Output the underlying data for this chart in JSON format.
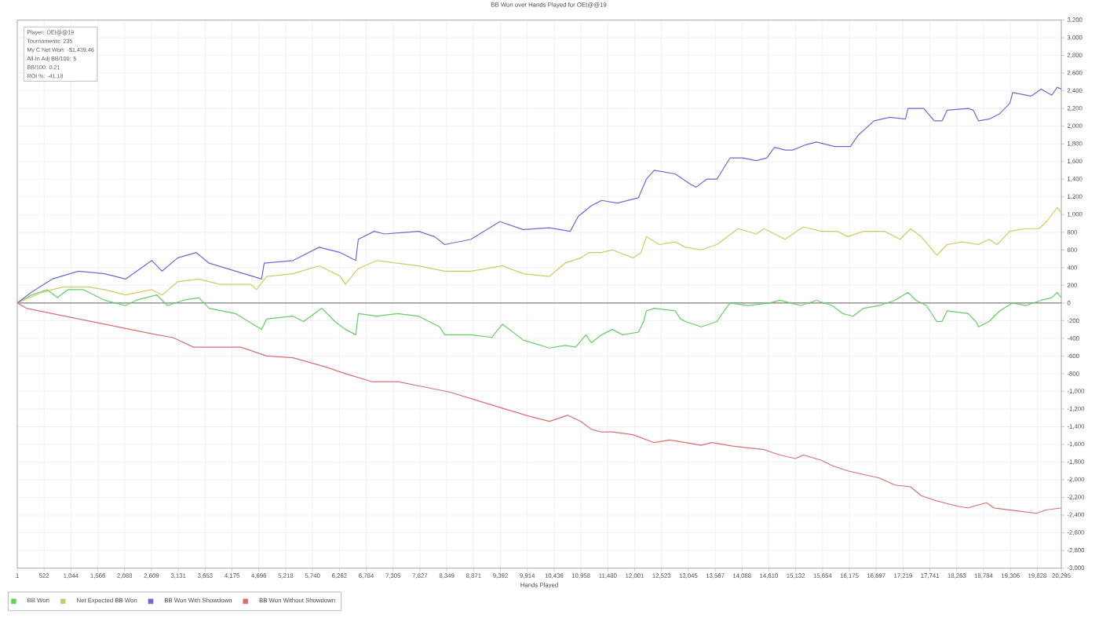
{
  "chart_data": {
    "type": "line",
    "title": "BB Won over Hands Played for OEt@@19",
    "xlabel": "Hands Played",
    "annotations": [
      "Player: OEt@@19",
      "Tournaments: 235",
      "My C Net Won: -$1,439.46",
      "All-In Adj BB/100: 5",
      "BB/100: 0.21",
      "ROI %: -41.18"
    ],
    "xlim": [
      1,
      20295
    ],
    "ylim": [
      -3000,
      3200
    ],
    "xticks": [
      1,
      522,
      {
        "value": 1044,
        "label": "1,044"
      },
      {
        "value": 1566,
        "label": "1,566"
      },
      {
        "value": 2088,
        "label": "2,088"
      },
      {
        "value": 2609,
        "label": "2,609"
      },
      {
        "value": 3131,
        "label": "3,131"
      },
      {
        "value": 3653,
        "label": "3,653"
      },
      {
        "value": 4175,
        "label": "4,175"
      },
      {
        "value": 4696,
        "label": "4,696"
      },
      {
        "value": 5218,
        "label": "5,218"
      },
      {
        "value": 5740,
        "label": "5,740"
      },
      {
        "value": 6262,
        "label": "6,262"
      },
      {
        "value": 6784,
        "label": "6,784"
      },
      {
        "value": 7305,
        "label": "7,305"
      },
      {
        "value": 7827,
        "label": "7,827"
      },
      {
        "value": 8349,
        "label": "8,349"
      },
      {
        "value": 8871,
        "label": "8,871"
      },
      {
        "value": 9392,
        "label": "9,392"
      },
      {
        "value": 9914,
        "label": "9,914"
      },
      {
        "value": 10436,
        "label": "10,436"
      },
      {
        "value": 10958,
        "label": "10,958"
      },
      {
        "value": 11480,
        "label": "11,480"
      },
      {
        "value": 12001,
        "label": "12,001"
      },
      {
        "value": 12523,
        "label": "12,523"
      },
      {
        "value": 13045,
        "label": "13,045"
      },
      {
        "value": 13567,
        "label": "13,567"
      },
      {
        "value": 14088,
        "label": "14,088"
      },
      {
        "value": 14610,
        "label": "14,610"
      },
      {
        "value": 15132,
        "label": "15,132"
      },
      {
        "value": 15654,
        "label": "15,654"
      },
      {
        "value": 16175,
        "label": "16,175"
      },
      {
        "value": 16697,
        "label": "16,697"
      },
      {
        "value": 17219,
        "label": "17,219"
      },
      {
        "value": 17741,
        "label": "17,741"
      },
      {
        "value": 18263,
        "label": "18,263"
      },
      {
        "value": 18784,
        "label": "18,784"
      },
      {
        "value": 19306,
        "label": "19,306"
      },
      {
        "value": 19828,
        "label": "19,828"
      },
      {
        "value": 20295,
        "label": "20,295"
      }
    ],
    "yticks": [
      {
        "value": -3000,
        "label": "-3,000"
      },
      {
        "value": -2800,
        "label": "-2,800"
      },
      {
        "value": -2600,
        "label": "-2,600"
      },
      {
        "value": -2400,
        "label": "-2,400"
      },
      {
        "value": -2200,
        "label": "-2,200"
      },
      {
        "value": -2000,
        "label": "-2,000"
      },
      {
        "value": -1800,
        "label": "-1,800"
      },
      {
        "value": -1600,
        "label": "-1,600"
      },
      {
        "value": -1400,
        "label": "-1,400"
      },
      {
        "value": -1200,
        "label": "-1,200"
      },
      {
        "value": -1000,
        "label": "-1,000"
      },
      -800,
      -600,
      -400,
      -200,
      0,
      200,
      400,
      600,
      800,
      {
        "value": 1000,
        "label": "1,000"
      },
      {
        "value": 1200,
        "label": "1,200"
      },
      {
        "value": 1400,
        "label": "1,400"
      },
      {
        "value": 1600,
        "label": "1,600"
      },
      {
        "value": 1800,
        "label": "1,800"
      },
      {
        "value": 2000,
        "label": "2,000"
      },
      {
        "value": 2200,
        "label": "2,200"
      },
      {
        "value": 2400,
        "label": "2,400"
      },
      {
        "value": 2600,
        "label": "2,600"
      },
      {
        "value": 2800,
        "label": "2,800"
      },
      {
        "value": 3000,
        "label": "3,000"
      },
      {
        "value": 3200,
        "label": "3,200"
      }
    ],
    "grid": true,
    "legend": "bottom left",
    "line_style": "solid",
    "ref_lines": [
      {
        "axis": "y",
        "value": 0,
        "color": "#808080"
      }
    ],
    "series": [
      {
        "name": "BB Won",
        "color": "#66cc66",
        "x": [
          1,
          275,
          580,
          785,
          985,
          1290,
          1700,
          2105,
          2310,
          2715,
          2920,
          3225,
          3530,
          3730,
          4240,
          4750,
          4850,
          5360,
          5565,
          5920,
          6175,
          6380,
          6580,
          6630,
          6990,
          7395,
          7800,
          8210,
          8310,
          8820,
          9225,
          9430,
          9835,
          10345,
          10650,
          10855,
          11055,
          11160,
          11360,
          11565,
          11770,
          12075,
          12175,
          12230,
          12380,
          12790,
          12890,
          12990,
          13295,
          13600,
          13705,
          13855,
          14210,
          14620,
          14825,
          15230,
          15535,
          15840,
          16045,
          16245,
          16450,
          16755,
          17060,
          17315,
          17470,
          17675,
          17875,
          17975,
          18075,
          18485,
          18635,
          18685,
          18890,
          19095,
          19350,
          19600,
          19905,
          20110,
          20215,
          20295
        ],
        "values": [
          0,
          90,
          150,
          60,
          150,
          150,
          30,
          -30,
          30,
          90,
          -30,
          30,
          60,
          -60,
          -120,
          -300,
          -180,
          -150,
          -210,
          -60,
          -210,
          -300,
          -360,
          -120,
          -150,
          -120,
          -150,
          -270,
          -360,
          -360,
          -390,
          -240,
          -420,
          -510,
          -480,
          -500,
          -360,
          -450,
          -360,
          -300,
          -360,
          -330,
          -210,
          -90,
          -60,
          -90,
          -180,
          -210,
          -270,
          -210,
          -120,
          0,
          -30,
          0,
          30,
          -30,
          30,
          -30,
          -120,
          -150,
          -60,
          -30,
          30,
          120,
          30,
          -30,
          -210,
          -210,
          -90,
          -120,
          -210,
          -270,
          -210,
          -90,
          0,
          -30,
          30,
          60,
          120,
          60
        ]
      },
      {
        "name": "Net Expected BB Won",
        "color": "#cccc66",
        "x": [
          1,
          480,
          885,
          1395,
          1700,
          2105,
          2615,
          2815,
          3120,
          3530,
          3935,
          4545,
          4650,
          4850,
          5360,
          5870,
          6280,
          6380,
          6630,
          6990,
          7800,
          8310,
          8820,
          9430,
          9835,
          10345,
          10650,
          10955,
          11110,
          11360,
          11565,
          11970,
          12125,
          12230,
          12485,
          12790,
          12990,
          13295,
          13600,
          14010,
          14365,
          14520,
          14925,
          15280,
          15635,
          15940,
          16145,
          16450,
          16855,
          17160,
          17365,
          17570,
          17875,
          18075,
          18380,
          18685,
          18890,
          19045,
          19295,
          19600,
          19860,
          20010,
          20215,
          20295
        ],
        "values": [
          0,
          120,
          180,
          180,
          150,
          90,
          150,
          90,
          240,
          270,
          210,
          210,
          150,
          300,
          330,
          420,
          300,
          210,
          390,
          480,
          420,
          360,
          360,
          420,
          330,
          300,
          450,
          510,
          570,
          570,
          600,
          510,
          570,
          750,
          660,
          690,
          630,
          600,
          660,
          840,
          780,
          840,
          720,
          860,
          810,
          810,
          750,
          810,
          810,
          720,
          840,
          750,
          540,
          660,
          690,
          660,
          720,
          660,
          810,
          840,
          840,
          920,
          1080,
          1020
        ]
      },
      {
        "name": "BB Won With Showdown",
        "color": "#6a6ad8",
        "x": [
          1,
          275,
          680,
          1190,
          1700,
          2105,
          2615,
          2815,
          3120,
          3480,
          3730,
          4240,
          4750,
          4800,
          5360,
          5870,
          6280,
          6580,
          6630,
          6935,
          7140,
          7800,
          8110,
          8310,
          8820,
          9380,
          9835,
          10345,
          10750,
          10905,
          11160,
          11360,
          11665,
          12075,
          12230,
          12380,
          12790,
          13095,
          13195,
          13400,
          13600,
          13855,
          14110,
          14365,
          14570,
          14720,
          14925,
          15075,
          15330,
          15535,
          15890,
          16195,
          16350,
          16655,
          16960,
          17265,
          17315,
          17620,
          17825,
          17975,
          18075,
          18485,
          18585,
          18685,
          18890,
          19095,
          19295,
          19350,
          19705,
          19905,
          20110,
          20215,
          20295
        ],
        "values": [
          0,
          120,
          270,
          360,
          330,
          270,
          480,
          360,
          510,
          570,
          450,
          360,
          270,
          450,
          480,
          630,
          570,
          480,
          720,
          810,
          780,
          810,
          750,
          660,
          720,
          920,
          830,
          850,
          810,
          980,
          1100,
          1160,
          1130,
          1190,
          1400,
          1500,
          1460,
          1340,
          1310,
          1400,
          1400,
          1640,
          1640,
          1610,
          1640,
          1760,
          1730,
          1730,
          1790,
          1820,
          1770,
          1770,
          1900,
          2060,
          2100,
          2080,
          2200,
          2200,
          2060,
          2060,
          2180,
          2200,
          2180,
          2060,
          2080,
          2140,
          2260,
          2380,
          2340,
          2420,
          2350,
          2440,
          2420
        ]
      },
      {
        "name": "BB Won Without Showdown",
        "color": "#d87070",
        "x": [
          1,
          175,
          680,
          1190,
          1700,
          2205,
          2715,
          3020,
          3425,
          3935,
          4345,
          4850,
          5360,
          5970,
          6380,
          6890,
          7395,
          7905,
          8415,
          8920,
          9430,
          9940,
          10345,
          10650,
          10700,
          10955,
          11160,
          11360,
          11565,
          11970,
          12380,
          12685,
          12990,
          13295,
          13500,
          13905,
          14210,
          14520,
          14825,
          15125,
          15280,
          15635,
          15840,
          16145,
          16450,
          16755,
          17060,
          17365,
          17570,
          17875,
          18280,
          18485,
          18585,
          18840,
          18990,
          19400,
          19805,
          20010,
          20295
        ],
        "values": [
          0,
          -60,
          -120,
          -180,
          -240,
          -300,
          -360,
          -390,
          -500,
          -500,
          -500,
          -600,
          -620,
          -720,
          -800,
          -890,
          -890,
          -950,
          -1010,
          -1100,
          -1190,
          -1280,
          -1340,
          -1280,
          -1270,
          -1340,
          -1430,
          -1460,
          -1460,
          -1490,
          -1580,
          -1550,
          -1580,
          -1610,
          -1580,
          -1620,
          -1640,
          -1660,
          -1720,
          -1760,
          -1720,
          -1780,
          -1840,
          -1900,
          -1940,
          -1980,
          -2060,
          -2080,
          -2180,
          -2240,
          -2300,
          -2320,
          -2300,
          -2260,
          -2320,
          -2350,
          -2380,
          -2340,
          -2320
        ]
      }
    ]
  }
}
